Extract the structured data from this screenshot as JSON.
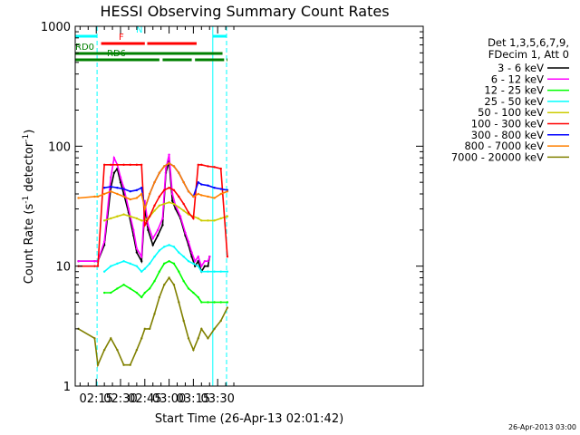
{
  "chart_data": {
    "type": "line",
    "title": "HESSI Observing Summary Count Rates",
    "xlabel": "Start Time (26-Apr-13 02:01:42)",
    "ylabel": "Count Rate (s⁻¹ detector⁻¹)",
    "ylabel_main": "Count Rate (s",
    "ylabel_sup1": "-1",
    "ylabel_mid": " detector",
    "ylabel_sup2": "-1",
    "ylabel_end": ")",
    "yscale": "log",
    "ylim": [
      1,
      1000
    ],
    "xlim_min": [
      2.0,
      217.0
    ],
    "x_ticks": [
      {
        "label": "02:15",
        "min": 15
      },
      {
        "label": "02:30",
        "min": 30
      },
      {
        "label": "02:45",
        "min": 45
      },
      {
        "label": "03:00",
        "min": 60
      },
      {
        "label": "03:15",
        "min": 75
      },
      {
        "label": "03:30",
        "min": 90
      }
    ],
    "y_ticks": [
      {
        "label": "1",
        "value": 1
      },
      {
        "label": "10",
        "value": 10
      },
      {
        "label": "100",
        "value": 100
      },
      {
        "label": "1000",
        "value": 1000
      }
    ],
    "legend_header": [
      "Det 1,3,5,6,7,9,",
      "FDecim 1, Att 0"
    ],
    "legend_position": "right",
    "series": [
      {
        "name": "3 - 6 keV",
        "color": "#000000",
        "x": [
          4,
          14,
          16,
          20,
          24,
          26,
          28,
          30,
          32,
          35,
          38,
          40,
          43,
          45,
          47,
          50,
          53,
          56,
          58,
          60,
          62,
          64,
          67,
          70,
          72,
          74,
          76,
          78,
          80,
          82,
          84,
          85
        ],
        "y": [
          11,
          11,
          11,
          15,
          45,
          60,
          65,
          50,
          40,
          28,
          18,
          13,
          11,
          30,
          20,
          15,
          18,
          22,
          60,
          75,
          35,
          30,
          25,
          18,
          15,
          12,
          10,
          11,
          9,
          10,
          10,
          12
        ]
      },
      {
        "name": "6 - 12 keV",
        "color": "#ff00ff",
        "x": [
          4,
          14,
          16,
          20,
          24,
          26,
          28,
          30,
          32,
          35,
          38,
          40,
          43,
          45,
          47,
          50,
          53,
          56,
          58,
          60,
          62,
          64,
          67,
          70,
          72,
          74,
          76,
          78,
          80,
          82,
          84,
          85
        ],
        "y": [
          11,
          11,
          11,
          16,
          55,
          80,
          70,
          55,
          45,
          30,
          20,
          14,
          12,
          35,
          22,
          17,
          20,
          25,
          65,
          85,
          40,
          32,
          26,
          19,
          16,
          13,
          11,
          12,
          10,
          11,
          11,
          12
        ]
      },
      {
        "name": "12 - 25 keV",
        "color": "#00ff00",
        "x": [
          4,
          14,
          16,
          20,
          24,
          28,
          32,
          36,
          40,
          43,
          45,
          48,
          51,
          54,
          57,
          60,
          63,
          66,
          69,
          72,
          75,
          78,
          80,
          84,
          88,
          92,
          96
        ],
        "y": [
          null,
          null,
          null,
          6,
          6,
          6.5,
          7,
          6.5,
          6,
          5.5,
          6,
          6.5,
          7.5,
          9,
          10.5,
          11,
          10.5,
          9,
          7.5,
          6.5,
          6,
          5.5,
          5,
          5,
          5,
          5,
          5
        ]
      },
      {
        "name": "25 - 50 keV",
        "color": "#00ffff",
        "x": [
          4,
          14,
          16,
          20,
          24,
          28,
          32,
          36,
          40,
          43,
          45,
          48,
          51,
          54,
          57,
          60,
          63,
          66,
          69,
          72,
          75,
          78,
          80,
          84,
          88,
          92,
          96
        ],
        "y": [
          null,
          null,
          null,
          9,
          10,
          10.5,
          11,
          10.5,
          10,
          9,
          9.5,
          10.5,
          12,
          13.5,
          14.5,
          15,
          14.5,
          13,
          12,
          11,
          10.5,
          10,
          9,
          9,
          9,
          9,
          9
        ]
      },
      {
        "name": "50 - 100 keV",
        "color": "#cccc00",
        "x": [
          4,
          14,
          16,
          20,
          24,
          28,
          32,
          36,
          40,
          43,
          45,
          48,
          51,
          54,
          57,
          60,
          63,
          66,
          69,
          72,
          75,
          78,
          80,
          84,
          88,
          92,
          96
        ],
        "y": [
          null,
          null,
          null,
          24,
          25,
          26,
          27,
          26,
          25,
          24,
          24,
          26,
          29,
          32,
          33,
          34,
          33,
          31,
          29,
          27,
          26,
          25,
          24,
          24,
          24,
          25,
          26
        ]
      },
      {
        "name": "100 - 300 keV",
        "color": "#ff0000",
        "x": [
          4,
          14,
          16,
          20,
          24,
          28,
          32,
          36,
          40,
          43,
          45,
          48,
          51,
          54,
          57,
          60,
          63,
          66,
          69,
          72,
          75,
          78,
          80,
          84,
          88,
          92,
          96
        ],
        "y": [
          10,
          10,
          10,
          70,
          70,
          70,
          70,
          70,
          70,
          70,
          22,
          26,
          32,
          38,
          43,
          45,
          43,
          38,
          33,
          28,
          25,
          70,
          70,
          68,
          67,
          65,
          12
        ]
      },
      {
        "name": "300 - 800 keV",
        "color": "#0000ff",
        "x": [
          4,
          14,
          16,
          20,
          24,
          28,
          32,
          36,
          40,
          43,
          45,
          48,
          51,
          54,
          57,
          60,
          63,
          66,
          69,
          72,
          75,
          78,
          80,
          84,
          88,
          92,
          96
        ],
        "y": [
          null,
          null,
          null,
          45,
          46,
          45,
          44,
          42,
          43,
          45,
          30,
          40,
          50,
          60,
          68,
          72,
          68,
          60,
          50,
          42,
          38,
          50,
          48,
          47,
          45,
          44,
          43
        ]
      },
      {
        "name": "800 - 7000 keV",
        "color": "#ff8000",
        "x": [
          4,
          14,
          16,
          20,
          24,
          28,
          32,
          36,
          40,
          43,
          45,
          48,
          51,
          54,
          57,
          60,
          63,
          66,
          69,
          72,
          75,
          78,
          80,
          84,
          88,
          92,
          96
        ],
        "y": [
          37,
          38,
          38,
          40,
          42,
          40,
          38,
          36,
          37,
          40,
          30,
          40,
          50,
          60,
          68,
          72,
          68,
          60,
          50,
          42,
          38,
          40,
          39,
          38,
          37,
          40,
          42
        ]
      },
      {
        "name": "7000 - 20000 keV",
        "color": "#808000",
        "x": [
          4,
          14,
          16,
          20,
          24,
          28,
          32,
          36,
          40,
          43,
          45,
          48,
          51,
          54,
          57,
          60,
          63,
          66,
          69,
          72,
          75,
          78,
          80,
          84,
          88,
          92,
          96
        ],
        "y": [
          3,
          2.5,
          1.5,
          2,
          2.5,
          2,
          1.5,
          1.5,
          2,
          2.5,
          3,
          3,
          4,
          5.5,
          7,
          8,
          7,
          5,
          3.5,
          2.5,
          2,
          2.5,
          3,
          2.5,
          3,
          3.5,
          4.5
        ]
      }
    ],
    "flag_bars": [
      {
        "label": "N",
        "color": "#00ffff",
        "segments": [
          [
            2,
            15.5
          ],
          [
            87,
            95.5
          ]
        ],
        "level": 0
      },
      {
        "label": "F",
        "color": "#ff0000",
        "segments": [
          [
            18,
            45
          ],
          [
            46.5,
            77
          ]
        ],
        "level": 1
      },
      {
        "label": "RD0",
        "color": "#008000",
        "segments": [
          [
            2,
            93
          ]
        ],
        "level": 2
      },
      {
        "label": "RD6",
        "color": "#008000",
        "segments": [
          [
            2,
            54
          ],
          [
            56,
            74
          ],
          [
            76,
            94
          ],
          [
            95.5,
            96
          ]
        ],
        "level": 3
      }
    ],
    "vertical_markers": [
      {
        "min": 15.5,
        "color": "#00ffff",
        "style": "dashed"
      },
      {
        "min": 87,
        "color": "#00ffff",
        "style": "solid"
      },
      {
        "min": 95.5,
        "color": "#00ffff",
        "style": "dashed"
      }
    ]
  },
  "footer_stamp": "26-Apr-2013 03:00"
}
